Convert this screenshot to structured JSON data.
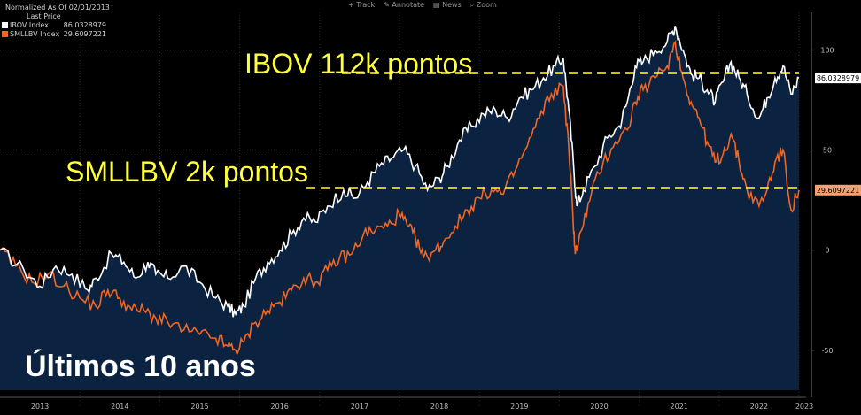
{
  "legend": {
    "header": "Normalized As Of 02/01/2013",
    "subheader": "Last Price"
  },
  "toolbar": {
    "track": "+ Track",
    "annotate": "✎ Annotate",
    "news": "▤ News",
    "zoom": "⌕ Zoom"
  },
  "annotations": {
    "ibov": "IBOV 112k pontos",
    "smll": "SMLLBV 2k pontos",
    "corner": "Últimos 10 anos"
  },
  "colors": {
    "ibov": "#ffffff",
    "smll": "#f26522",
    "area": "#0b2341",
    "dash": "#ffff3c",
    "badge_ibov": "#ffffff",
    "badge_smll": "#f4a070"
  },
  "chart_data": {
    "type": "line",
    "x_labels": [
      "2013",
      "2014",
      "2015",
      "2016",
      "2017",
      "2018",
      "2019",
      "2020",
      "2021",
      "2022",
      "2023"
    ],
    "x_range": [
      2013,
      2023
    ],
    "y_ticks": [
      100,
      50,
      0,
      -50
    ],
    "ylim": [
      -70,
      117
    ],
    "grid": true,
    "reference_lines": [
      88.5,
      31
    ],
    "series": [
      {
        "name": "IBOV Index",
        "last": "86.0328979",
        "points": [
          [
            2013.0,
            0
          ],
          [
            2013.3,
            -10
          ],
          [
            2013.5,
            -18
          ],
          [
            2013.7,
            -8
          ],
          [
            2013.9,
            -12
          ],
          [
            2014.1,
            -20
          ],
          [
            2014.2,
            -14
          ],
          [
            2014.4,
            -2
          ],
          [
            2014.55,
            -6
          ],
          [
            2014.7,
            -14
          ],
          [
            2014.85,
            -6
          ],
          [
            2014.95,
            -12
          ],
          [
            2015.1,
            -14
          ],
          [
            2015.3,
            -8
          ],
          [
            2015.5,
            -16
          ],
          [
            2015.7,
            -24
          ],
          [
            2015.85,
            -28
          ],
          [
            2015.95,
            -32
          ],
          [
            2016.05,
            -28
          ],
          [
            2016.2,
            -14
          ],
          [
            2016.35,
            -6
          ],
          [
            2016.5,
            0
          ],
          [
            2016.65,
            8
          ],
          [
            2016.8,
            16
          ],
          [
            2016.95,
            14
          ],
          [
            2017.1,
            22
          ],
          [
            2017.3,
            30
          ],
          [
            2017.45,
            26
          ],
          [
            2017.6,
            34
          ],
          [
            2017.75,
            42
          ],
          [
            2017.9,
            46
          ],
          [
            2018.05,
            50
          ],
          [
            2018.2,
            42
          ],
          [
            2018.35,
            30
          ],
          [
            2018.5,
            36
          ],
          [
            2018.6,
            42
          ],
          [
            2018.75,
            55
          ],
          [
            2018.9,
            62
          ],
          [
            2019.05,
            68
          ],
          [
            2019.2,
            70
          ],
          [
            2019.35,
            66
          ],
          [
            2019.5,
            76
          ],
          [
            2019.65,
            80
          ],
          [
            2019.8,
            86
          ],
          [
            2019.95,
            92
          ],
          [
            2020.05,
            96
          ],
          [
            2020.12,
            70
          ],
          [
            2020.18,
            42
          ],
          [
            2020.22,
            22
          ],
          [
            2020.3,
            30
          ],
          [
            2020.45,
            42
          ],
          [
            2020.6,
            56
          ],
          [
            2020.75,
            62
          ],
          [
            2020.85,
            74
          ],
          [
            2020.95,
            92
          ],
          [
            2021.05,
            94
          ],
          [
            2021.2,
            100
          ],
          [
            2021.35,
            104
          ],
          [
            2021.45,
            112
          ],
          [
            2021.55,
            100
          ],
          [
            2021.65,
            88
          ],
          [
            2021.75,
            86
          ],
          [
            2021.85,
            80
          ],
          [
            2021.95,
            74
          ],
          [
            2022.05,
            84
          ],
          [
            2022.15,
            94
          ],
          [
            2022.25,
            86
          ],
          [
            2022.35,
            78
          ],
          [
            2022.5,
            66
          ],
          [
            2022.6,
            76
          ],
          [
            2022.7,
            86
          ],
          [
            2022.8,
            92
          ],
          [
            2022.9,
            78
          ],
          [
            2023.0,
            86
          ]
        ]
      },
      {
        "name": "SMLLBV Index",
        "last": "29.6097221",
        "points": [
          [
            2013.0,
            0
          ],
          [
            2013.2,
            -8
          ],
          [
            2013.4,
            -16
          ],
          [
            2013.6,
            -12
          ],
          [
            2013.8,
            -18
          ],
          [
            2014.0,
            -24
          ],
          [
            2014.2,
            -28
          ],
          [
            2014.35,
            -20
          ],
          [
            2014.5,
            -24
          ],
          [
            2014.65,
            -30
          ],
          [
            2014.8,
            -30
          ],
          [
            2014.95,
            -34
          ],
          [
            2015.1,
            -36
          ],
          [
            2015.3,
            -40
          ],
          [
            2015.5,
            -42
          ],
          [
            2015.7,
            -44
          ],
          [
            2015.85,
            -48
          ],
          [
            2015.95,
            -50
          ],
          [
            2016.05,
            -46
          ],
          [
            2016.2,
            -36
          ],
          [
            2016.35,
            -30
          ],
          [
            2016.5,
            -26
          ],
          [
            2016.65,
            -20
          ],
          [
            2016.8,
            -14
          ],
          [
            2016.95,
            -16
          ],
          [
            2017.1,
            -10
          ],
          [
            2017.25,
            -4
          ],
          [
            2017.4,
            -2
          ],
          [
            2017.55,
            8
          ],
          [
            2017.7,
            10
          ],
          [
            2017.85,
            12
          ],
          [
            2018.0,
            18
          ],
          [
            2018.1,
            12
          ],
          [
            2018.2,
            6
          ],
          [
            2018.3,
            -4
          ],
          [
            2018.45,
            0
          ],
          [
            2018.55,
            4
          ],
          [
            2018.7,
            12
          ],
          [
            2018.85,
            20
          ],
          [
            2019.0,
            26
          ],
          [
            2019.15,
            30
          ],
          [
            2019.3,
            28
          ],
          [
            2019.45,
            40
          ],
          [
            2019.6,
            52
          ],
          [
            2019.75,
            66
          ],
          [
            2019.9,
            78
          ],
          [
            2020.05,
            82
          ],
          [
            2020.12,
            50
          ],
          [
            2020.17,
            18
          ],
          [
            2020.2,
            -2
          ],
          [
            2020.28,
            10
          ],
          [
            2020.4,
            28
          ],
          [
            2020.55,
            44
          ],
          [
            2020.7,
            54
          ],
          [
            2020.85,
            60
          ],
          [
            2020.95,
            74
          ],
          [
            2021.05,
            80
          ],
          [
            2021.2,
            86
          ],
          [
            2021.35,
            92
          ],
          [
            2021.45,
            104
          ],
          [
            2021.55,
            86
          ],
          [
            2021.65,
            74
          ],
          [
            2021.75,
            66
          ],
          [
            2021.85,
            54
          ],
          [
            2021.95,
            44
          ],
          [
            2022.05,
            48
          ],
          [
            2022.15,
            58
          ],
          [
            2022.25,
            44
          ],
          [
            2022.35,
            30
          ],
          [
            2022.5,
            22
          ],
          [
            2022.6,
            30
          ],
          [
            2022.7,
            44
          ],
          [
            2022.8,
            50
          ],
          [
            2022.9,
            20
          ],
          [
            2023.0,
            30
          ]
        ]
      }
    ]
  }
}
